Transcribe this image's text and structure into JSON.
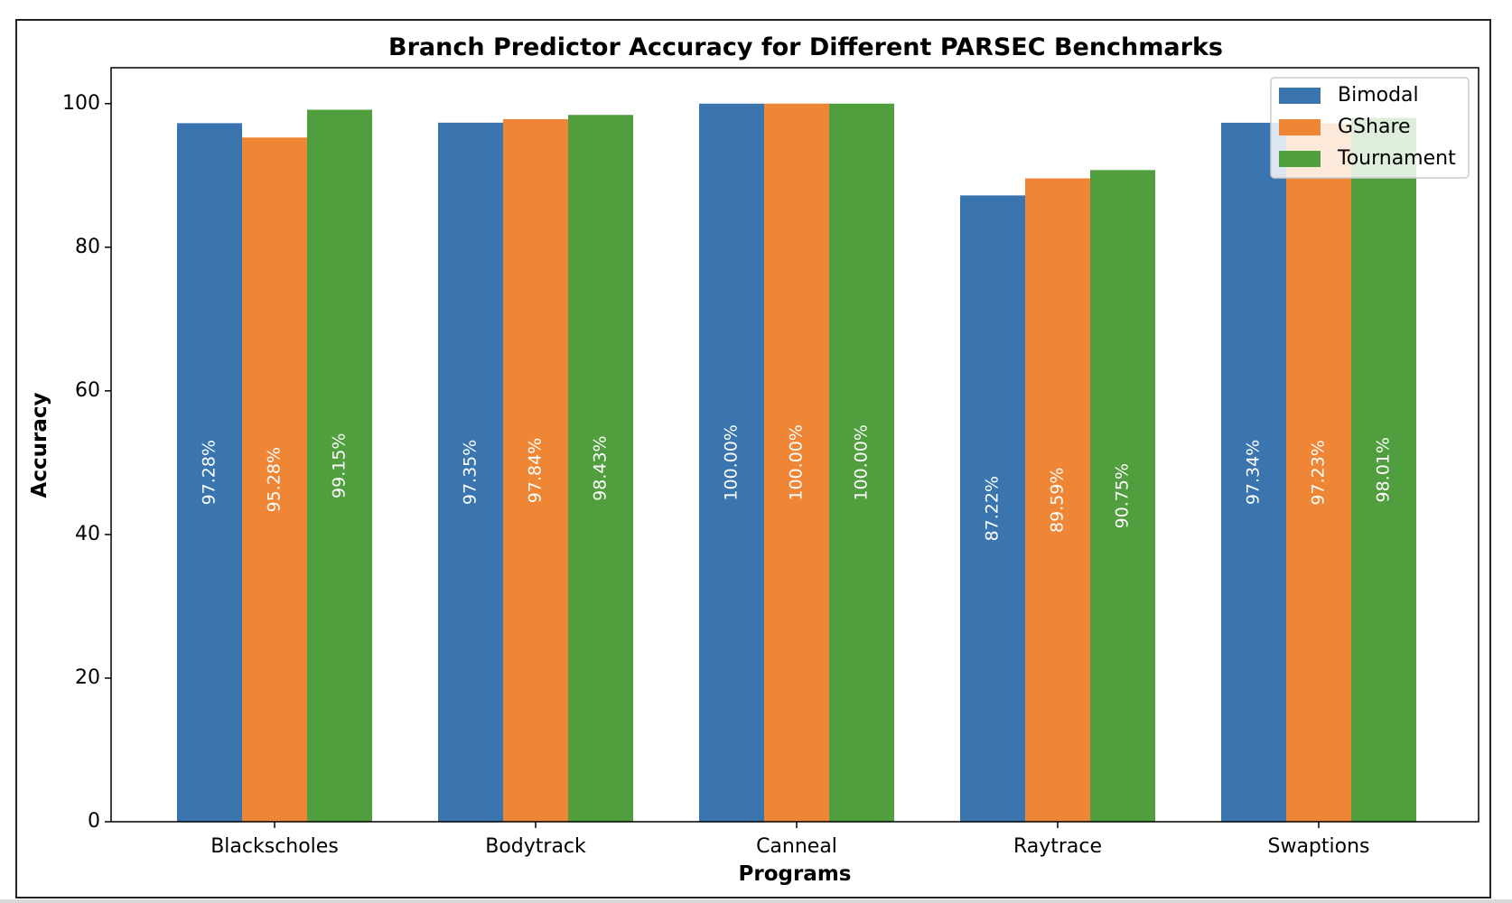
{
  "chart_data": {
    "type": "bar",
    "title": "Branch Predictor Accuracy for Different PARSEC Benchmarks",
    "xlabel": "Programs",
    "ylabel": "Accuracy",
    "ylim": [
      0,
      105
    ],
    "yticks": [
      0,
      20,
      40,
      60,
      80,
      100
    ],
    "categories": [
      "Blackscholes",
      "Bodytrack",
      "Canneal",
      "Raytrace",
      "Swaptions"
    ],
    "series": [
      {
        "name": "Bimodal",
        "color": "#3a75b0",
        "values": [
          97.28,
          97.35,
          100.0,
          87.22,
          97.34
        ],
        "labels": [
          "97.28%",
          "97.35%",
          "100.00%",
          "87.22%",
          "97.34%"
        ]
      },
      {
        "name": "GShare",
        "color": "#ef8636",
        "values": [
          95.28,
          97.84,
          100.0,
          89.59,
          97.23
        ],
        "labels": [
          "95.28%",
          "97.84%",
          "100.00%",
          "89.59%",
          "97.23%"
        ]
      },
      {
        "name": "Tournament",
        "color": "#519e3e",
        "values": [
          99.15,
          98.43,
          100.0,
          90.75,
          98.01
        ],
        "labels": [
          "99.15%",
          "98.43%",
          "100.00%",
          "90.75%",
          "98.01%"
        ]
      }
    ],
    "grid": false,
    "legend_position": "top-right"
  }
}
